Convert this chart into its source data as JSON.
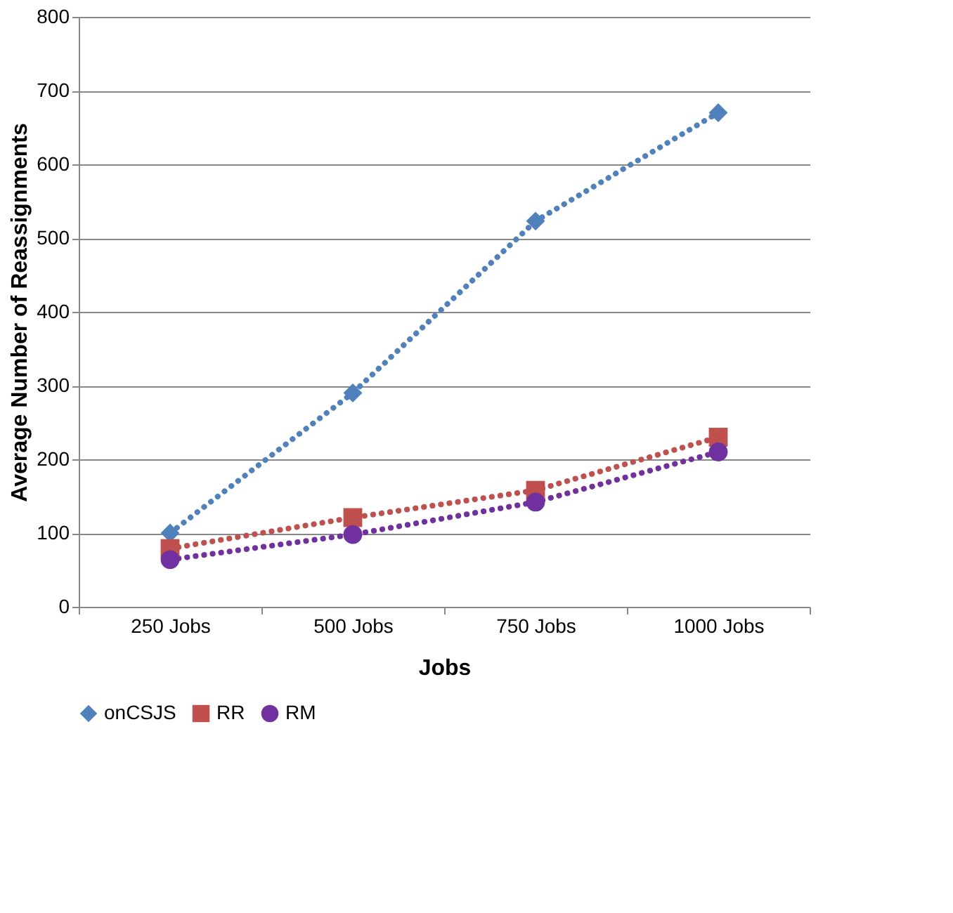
{
  "chart_data": {
    "type": "line",
    "xlabel": "Jobs",
    "ylabel": "Average Number of Reassignments",
    "categories": [
      "250  Jobs",
      "500 Jobs",
      "750 Jobs",
      "1000 Jobs"
    ],
    "series": [
      {
        "name": "onCSJS",
        "color": "#4f81bd",
        "marker": "diamond",
        "values": [
          100,
          290,
          523,
          670
        ]
      },
      {
        "name": "RR",
        "color": "#c0504d",
        "marker": "square",
        "values": [
          79,
          121,
          158,
          230
        ]
      },
      {
        "name": "RM",
        "color": "#7030a0",
        "marker": "circle",
        "values": [
          64,
          98,
          142,
          210
        ]
      }
    ],
    "ylim": [
      0,
      800
    ],
    "yticks": [
      0,
      100,
      200,
      300,
      400,
      500,
      600,
      700,
      800
    ],
    "grid": "y",
    "legend": "bottom",
    "line_style": "dotted"
  }
}
